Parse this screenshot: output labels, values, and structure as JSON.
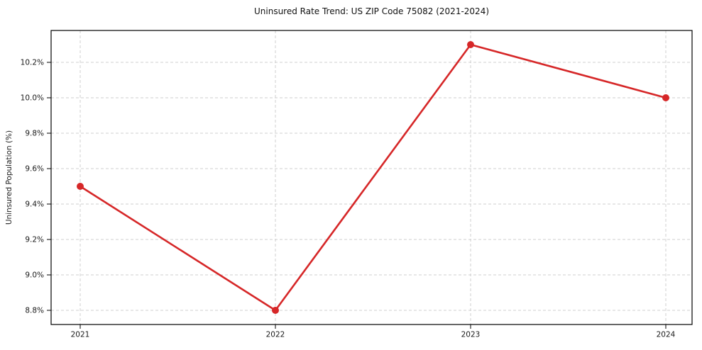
{
  "chart_data": {
    "type": "line",
    "title": "Uninsured Rate Trend: US ZIP Code 75082 (2021-2024)",
    "xlabel": "",
    "ylabel": "Uninsured Population (%)",
    "categories": [
      "2021",
      "2022",
      "2023",
      "2024"
    ],
    "values": [
      9.5,
      8.8,
      10.3,
      10.0
    ],
    "y_tick_labels": [
      "8.8%",
      "9.0%",
      "9.2%",
      "9.4%",
      "9.6%",
      "9.8%",
      "10.0%",
      "10.2%"
    ],
    "y_tick_values": [
      8.8,
      9.0,
      9.2,
      9.4,
      9.6,
      9.8,
      10.0,
      10.2
    ],
    "ylim": [
      8.72,
      10.38
    ],
    "grid": true,
    "grid_style": "dashed",
    "legend": "none",
    "line_color": "#d62728",
    "marker": "circle",
    "grid_color": "#cfcfcf",
    "spine_color": "#000000",
    "tick_color": "#1a1a1a"
  }
}
